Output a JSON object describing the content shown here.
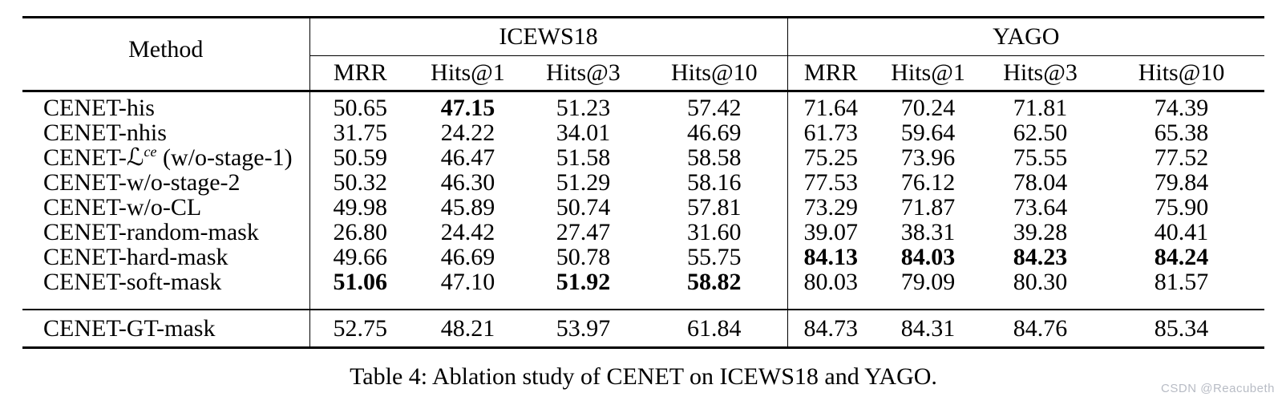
{
  "table": {
    "method_header": "Method",
    "groups": [
      {
        "label": "ICEWS18",
        "columns": [
          "MRR",
          "Hits@1",
          "Hits@3",
          "Hits@10"
        ]
      },
      {
        "label": "YAGO",
        "columns": [
          "MRR",
          "Hits@1",
          "Hits@3",
          "Hits@10"
        ]
      }
    ],
    "rows": [
      {
        "method": "CENET-his",
        "values": [
          "50.65",
          "47.15",
          "51.23",
          "57.42",
          "71.64",
          "70.24",
          "71.81",
          "74.39"
        ],
        "bold": [
          false,
          true,
          false,
          false,
          false,
          false,
          false,
          false
        ]
      },
      {
        "method": "CENET-nhis",
        "values": [
          "31.75",
          "24.22",
          "34.01",
          "46.69",
          "61.73",
          "59.64",
          "62.50",
          "65.38"
        ],
        "bold": [
          false,
          false,
          false,
          false,
          false,
          false,
          false,
          false
        ]
      },
      {
        "method_segments": [
          {
            "t": "CENET-",
            "s": "plain"
          },
          {
            "t": "ℒ",
            "s": "script"
          },
          {
            "t": "ce",
            "s": "sup"
          },
          {
            "t": " (w/o-stage-1)",
            "s": "plain"
          }
        ],
        "values": [
          "50.59",
          "46.47",
          "51.58",
          "58.58",
          "75.25",
          "73.96",
          "75.55",
          "77.52"
        ],
        "bold": [
          false,
          false,
          false,
          false,
          false,
          false,
          false,
          false
        ]
      },
      {
        "method": "CENET-w/o-stage-2",
        "values": [
          "50.32",
          "46.30",
          "51.29",
          "58.16",
          "77.53",
          "76.12",
          "78.04",
          "79.84"
        ],
        "bold": [
          false,
          false,
          false,
          false,
          false,
          false,
          false,
          false
        ]
      },
      {
        "method": "CENET-w/o-CL",
        "values": [
          "49.98",
          "45.89",
          "50.74",
          "57.81",
          "73.29",
          "71.87",
          "73.64",
          "75.90"
        ],
        "bold": [
          false,
          false,
          false,
          false,
          false,
          false,
          false,
          false
        ]
      },
      {
        "method": "CENET-random-mask",
        "values": [
          "26.80",
          "24.42",
          "27.47",
          "31.60",
          "39.07",
          "38.31",
          "39.28",
          "40.41"
        ],
        "bold": [
          false,
          false,
          false,
          false,
          false,
          false,
          false,
          false
        ]
      },
      {
        "method": "CENET-hard-mask",
        "values": [
          "49.66",
          "46.69",
          "50.78",
          "55.75",
          "84.13",
          "84.03",
          "84.23",
          "84.24"
        ],
        "bold": [
          false,
          false,
          false,
          false,
          true,
          true,
          true,
          true
        ]
      },
      {
        "method": "CENET-soft-mask",
        "values": [
          "51.06",
          "47.10",
          "51.92",
          "58.82",
          "80.03",
          "79.09",
          "80.30",
          "81.57"
        ],
        "bold": [
          true,
          false,
          true,
          true,
          false,
          false,
          false,
          false
        ]
      }
    ],
    "footer_rows": [
      {
        "method": "CENET-GT-mask",
        "values": [
          "52.75",
          "48.21",
          "53.97",
          "61.84",
          "84.73",
          "84.31",
          "84.76",
          "85.34"
        ],
        "bold": [
          false,
          false,
          false,
          false,
          false,
          false,
          false,
          false
        ]
      }
    ]
  },
  "caption": "Table 4: Ablation study of CENET on ICEWS18 and YAGO.",
  "watermark": "CSDN @Reacubeth",
  "colors": {
    "rule": "#000000",
    "background": "#ffffff",
    "watermark": "#b8bcc5"
  }
}
